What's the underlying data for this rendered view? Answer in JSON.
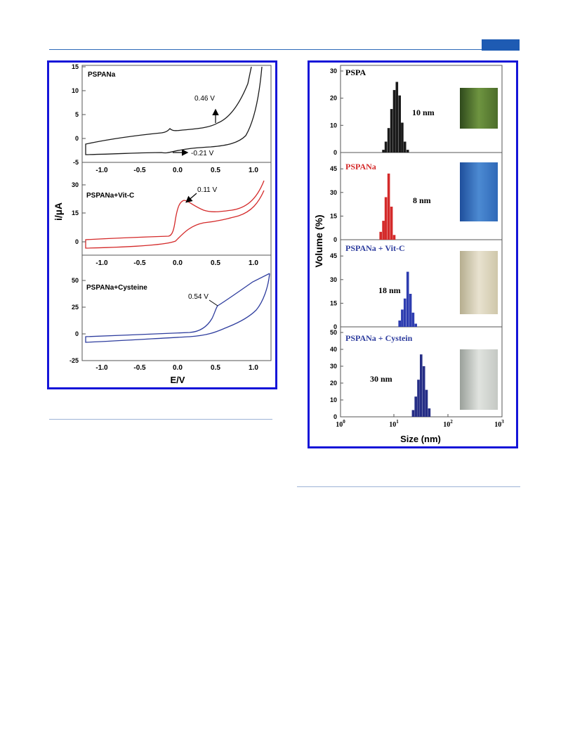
{
  "header": {
    "accent_color": "#1e5bb3"
  },
  "figure_left": {
    "type": "cyclic-voltammogram",
    "ylabel": "i/µA",
    "xlabel": "E/V",
    "x_ticks": [
      "-1.0",
      "-0.5",
      "0.0",
      "0.5",
      "1.0"
    ],
    "panels": [
      {
        "label": "PSPANa",
        "color": "#1a1a1a",
        "y_ticks": [
          "15",
          "10",
          "5",
          "0",
          "-5"
        ],
        "annotations": [
          "0.46 V",
          "-0.21 V"
        ]
      },
      {
        "label": "PSPANa+Vit-C",
        "color": "#d42a2a",
        "y_ticks": [
          "30",
          "15",
          "0"
        ],
        "annotations": [
          "0.11 V"
        ]
      },
      {
        "label": "PSPANa+Cysteine",
        "color": "#2e3d9e",
        "y_ticks": [
          "50",
          "25",
          "0",
          "-25"
        ],
        "annotations": [
          "0.54 V"
        ]
      }
    ]
  },
  "figure_right": {
    "type": "histogram",
    "ylabel": "Volume (%)",
    "xlabel": "Size (nm)",
    "x_tick_bases": [
      "10",
      "10",
      "10",
      "10"
    ],
    "x_tick_exponents": [
      "0",
      "1",
      "2",
      "3"
    ],
    "panels": [
      {
        "label": "PSPA",
        "label_color": "#000000",
        "bar_color": "#1a1a1a",
        "size_label": "10 nm",
        "y_ticks": [
          "30",
          "20",
          "10",
          "0"
        ],
        "y_max": 30,
        "photo_colors": [
          "#2f4a1c",
          "#6e9440",
          "#4c6d2a"
        ],
        "bins_nm": [
          6.3,
          7.0,
          7.9,
          8.9,
          10.0,
          11.2,
          12.6,
          14.1,
          15.8,
          17.8
        ],
        "volume": [
          1,
          4,
          9,
          16,
          23,
          26,
          21,
          11,
          4,
          1
        ]
      },
      {
        "label": "PSPANa",
        "label_color": "#d42a2a",
        "bar_color": "#d42a2a",
        "size_label": "8 nm",
        "y_ticks": [
          "45",
          "30",
          "15",
          "0"
        ],
        "y_max": 50,
        "photo_colors": [
          "#1f4f9c",
          "#4c8ad2",
          "#2f69b8"
        ],
        "bins_nm": [
          5.6,
          6.3,
          7.0,
          7.9,
          8.9,
          10.0
        ],
        "volume": [
          5,
          12,
          27,
          42,
          21,
          3
        ]
      },
      {
        "label": "PSPANa + Vit-C",
        "label_color": "#2e3d9e",
        "bar_color": "#2e3db0",
        "size_label": "18 nm",
        "y_ticks": [
          "45",
          "30",
          "15",
          "0"
        ],
        "y_max": 50,
        "photo_colors": [
          "#b5ad8f",
          "#e8e2cf",
          "#cfc7aa"
        ],
        "bins_nm": [
          12.6,
          14.1,
          15.8,
          17.8,
          20.0,
          22.4,
          25.1
        ],
        "volume": [
          4,
          11,
          18,
          35,
          21,
          9,
          2
        ]
      },
      {
        "label": "PSPANa + Cystein",
        "label_color": "#2e3d9e",
        "bar_color": "#262e86",
        "size_label": "30 nm",
        "y_ticks": [
          "50",
          "40",
          "30",
          "20",
          "10",
          "0"
        ],
        "y_max": 50,
        "photo_colors": [
          "#9aa09a",
          "#e0e3df",
          "#c4c8c3"
        ],
        "bins_nm": [
          22.4,
          25.1,
          28.2,
          31.6,
          35.5,
          39.8,
          44.7
        ],
        "volume": [
          4,
          12,
          22,
          37,
          30,
          16,
          5
        ]
      }
    ]
  }
}
